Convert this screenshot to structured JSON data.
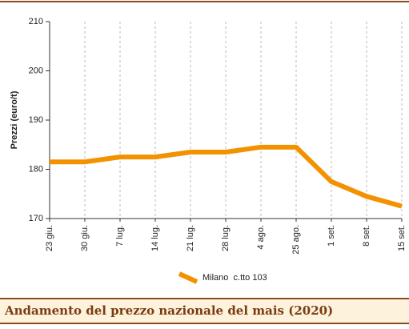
{
  "chart_data": {
    "type": "line",
    "title": "Andamento del prezzo nazionale del mais (2020)",
    "y_label": "Prezzi (euro/t)",
    "categories": [
      "23 giu.",
      "30 giu.",
      "7 lug.",
      "14 lug.",
      "21 lug.",
      "28 lug.",
      "4 ago.",
      "25 ago.",
      "1 set.",
      "8 set.",
      "15 set."
    ],
    "series": [
      {
        "name": "Milano  c.tto 103",
        "color": "#f39200",
        "values": [
          181.5,
          181.5,
          182.5,
          182.5,
          183.5,
          183.5,
          184.5,
          184.5,
          177.5,
          174.5,
          172.5
        ]
      }
    ],
    "ylim": [
      170,
      210
    ],
    "yticks": [
      170,
      180,
      190,
      200,
      210
    ],
    "grid": true
  }
}
